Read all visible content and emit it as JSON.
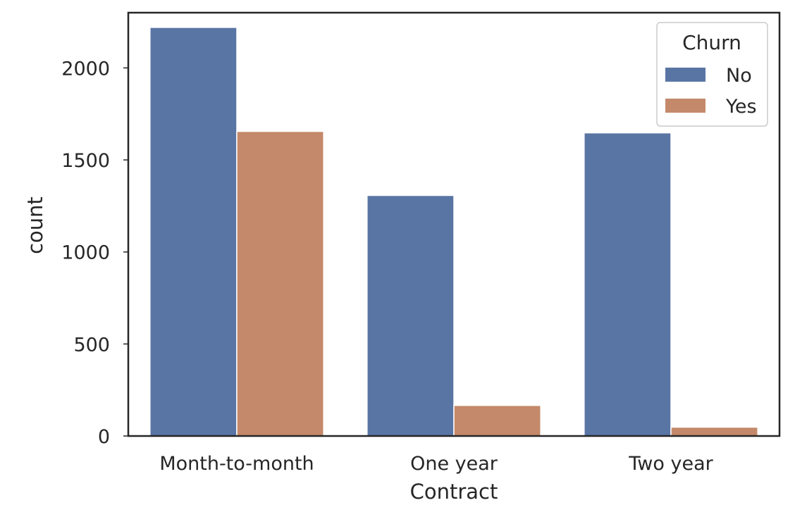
{
  "chart_data": {
    "type": "bar",
    "title": "",
    "xlabel": "Contract",
    "ylabel": "count",
    "categories": [
      "Month-to-month",
      "One year",
      "Two year"
    ],
    "series": [
      {
        "name": "No",
        "color": "#5975a4",
        "values": [
          2220,
          1307,
          1647
        ]
      },
      {
        "name": "Yes",
        "color": "#c4896a",
        "values": [
          1655,
          166,
          48
        ]
      }
    ],
    "ylim": [
      0,
      2300
    ],
    "yticks": [
      0,
      500,
      1000,
      1500,
      2000
    ],
    "grid": false,
    "legend": {
      "title": "Churn",
      "placement": "top-right"
    }
  }
}
